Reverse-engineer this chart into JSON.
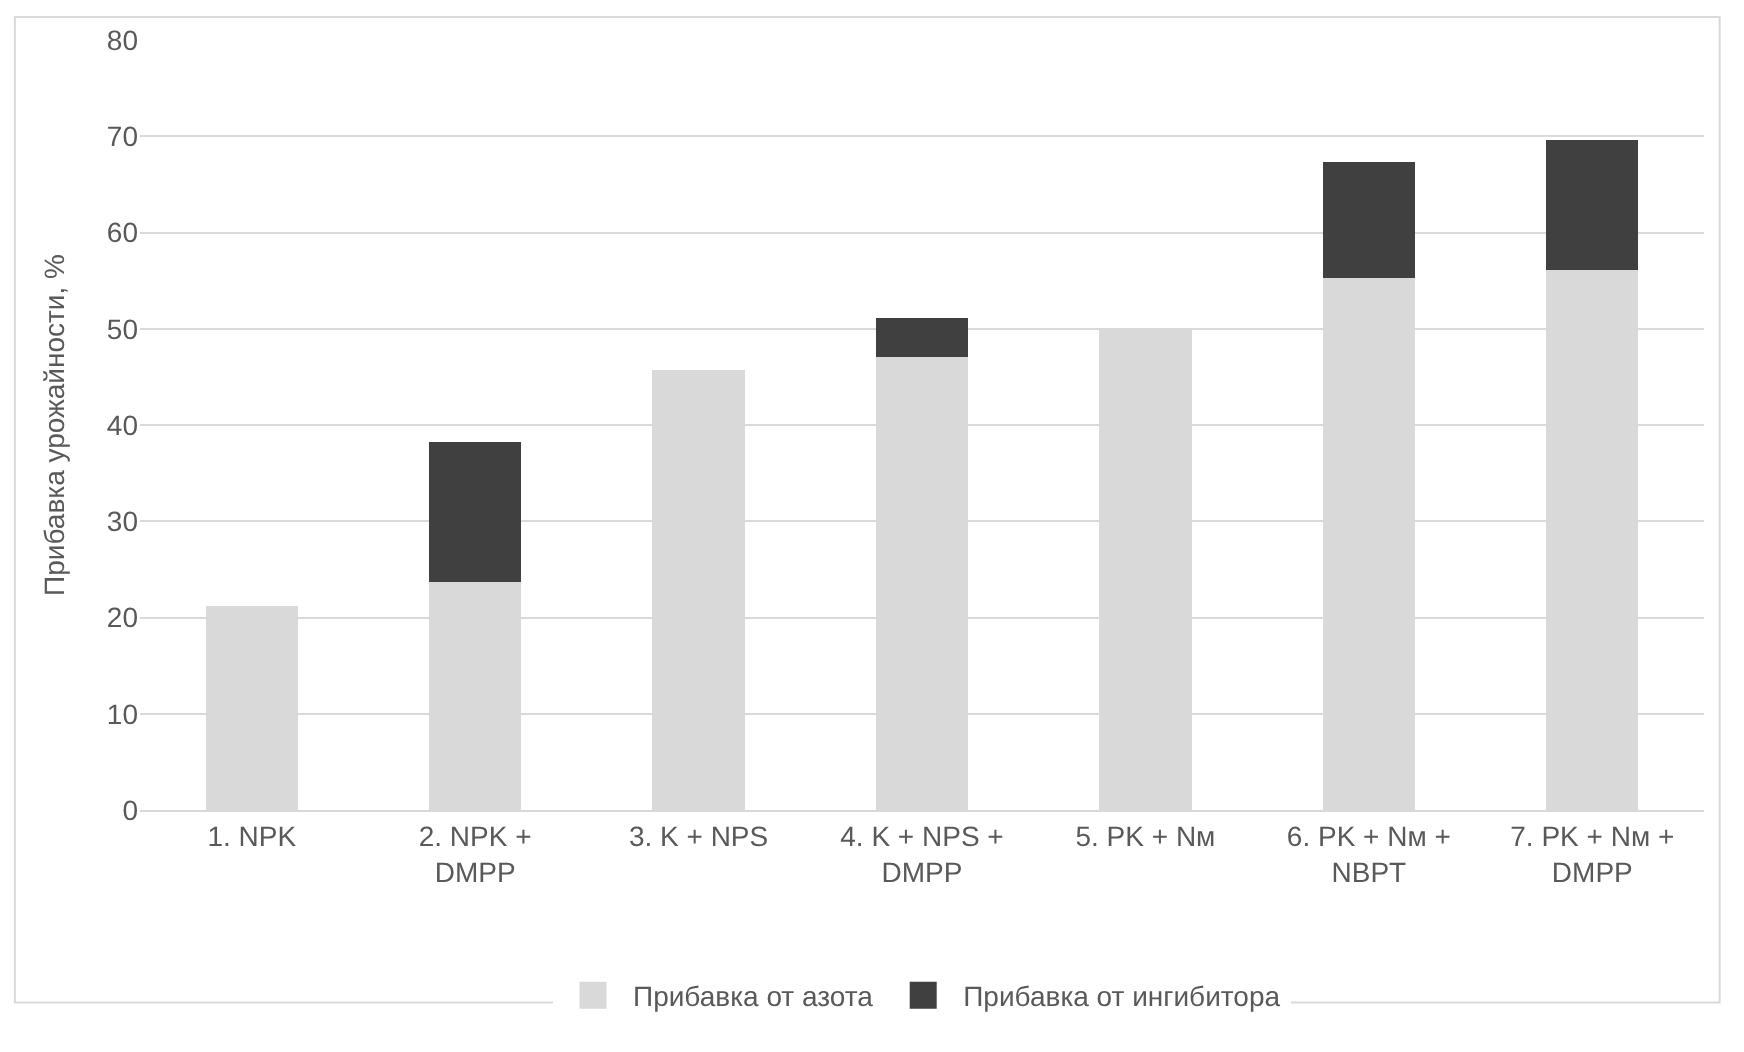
{
  "chart_data": {
    "type": "bar",
    "stacked": true,
    "ylabel": "Прибавка урожайности, %",
    "categories": [
      "1. NPK",
      "2. NPK + DMPP",
      "3. K + NPS",
      "4. K + NPS + DMPP",
      "5. PK + Nм",
      "6. PK + Nм + NBPT",
      "7. PK + Nм + DMPP"
    ],
    "series": [
      {
        "name": "Прибавка от азота",
        "color": "#d9d9d9",
        "values": [
          21,
          23.8,
          45.6,
          47.2,
          49.7,
          55.4,
          56.3
        ]
      },
      {
        "name": "Прибавка от ингибитора",
        "color": "#404040",
        "values": [
          null,
          14.3,
          null,
          3.8,
          null,
          11.8,
          13.2
        ]
      }
    ],
    "ylim": [
      0,
      80
    ],
    "yticks": [
      0,
      10,
      20,
      30,
      40,
      50,
      60,
      70,
      80
    ],
    "grid": "y",
    "legend": "bottom"
  }
}
